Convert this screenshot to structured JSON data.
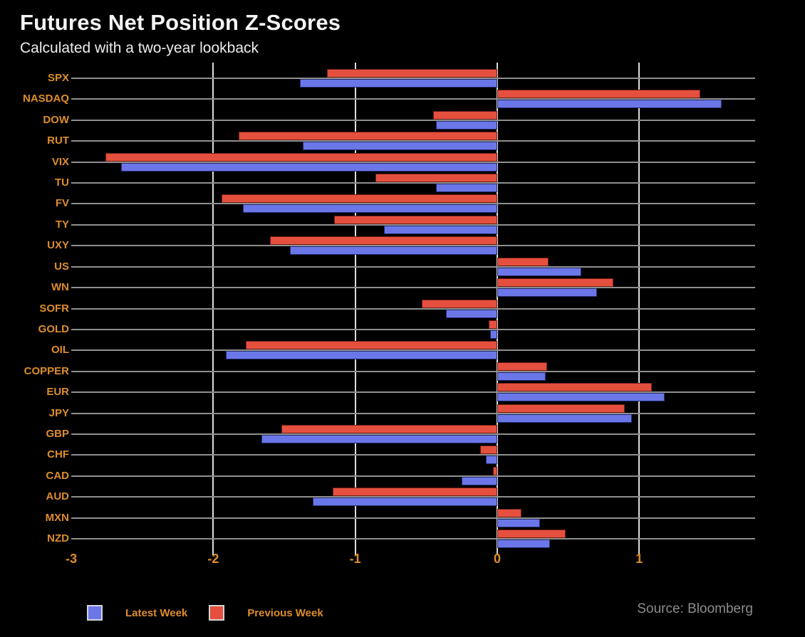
{
  "header": {
    "title": "Futures Net Position Z-Scores",
    "subtitle": "Calculated with a two-year lookback"
  },
  "legend": {
    "latest_label": "Latest Week",
    "previous_label": "Previous Week"
  },
  "source": "Source: Bloomberg",
  "colors": {
    "latest_week": "#6b77e8",
    "previous_week": "#e5503e",
    "label_orange": "#dd8d2b",
    "background": "#000000",
    "gridline": "#dcdcdc",
    "row_line": "#8f8f8f",
    "source_gray": "#8c8c8c"
  },
  "chart_data": {
    "type": "bar",
    "orientation": "horizontal",
    "title": "Futures Net Position Z-Scores",
    "subtitle": "Calculated with a two-year lookback",
    "xlabel": "",
    "ylabel": "",
    "xlim": [
      -3,
      1.82
    ],
    "x_ticks": [
      -3,
      -2,
      -1,
      0,
      1
    ],
    "x_tick_labels": [
      "-3",
      "-2",
      "-1",
      "0",
      "1"
    ],
    "grid_ticks": [
      -2,
      -1,
      0,
      1
    ],
    "grid": true,
    "legend_position": "bottom-left",
    "categories": [
      "SPX",
      "NASDAQ",
      "DOW",
      "RUT",
      "VIX",
      "TU",
      "FV",
      "TY",
      "UXY",
      "US",
      "WN",
      "SOFR",
      "GOLD",
      "OIL",
      "COPPER",
      "EUR",
      "JPY",
      "GBP",
      "CHF",
      "CAD",
      "AUD",
      "MXN",
      "NZD"
    ],
    "series": [
      {
        "name": "Latest Week",
        "color": "#6b77e8",
        "values": [
          -1.39,
          1.58,
          -0.43,
          -1.37,
          -2.65,
          -0.43,
          -1.79,
          -0.8,
          -1.46,
          0.59,
          0.7,
          -0.36,
          -0.05,
          -1.91,
          0.34,
          1.18,
          0.95,
          -1.66,
          -0.08,
          -0.25,
          -1.3,
          0.3,
          0.37
        ]
      },
      {
        "name": "Previous Week",
        "color": "#e5503e",
        "values": [
          -1.2,
          1.43,
          -0.45,
          -1.82,
          -2.76,
          -0.86,
          -1.94,
          -1.15,
          -1.6,
          0.36,
          0.82,
          -0.53,
          -0.06,
          -1.77,
          0.35,
          1.09,
          0.9,
          -1.52,
          -0.12,
          -0.03,
          -1.16,
          0.17,
          0.48
        ]
      }
    ]
  }
}
